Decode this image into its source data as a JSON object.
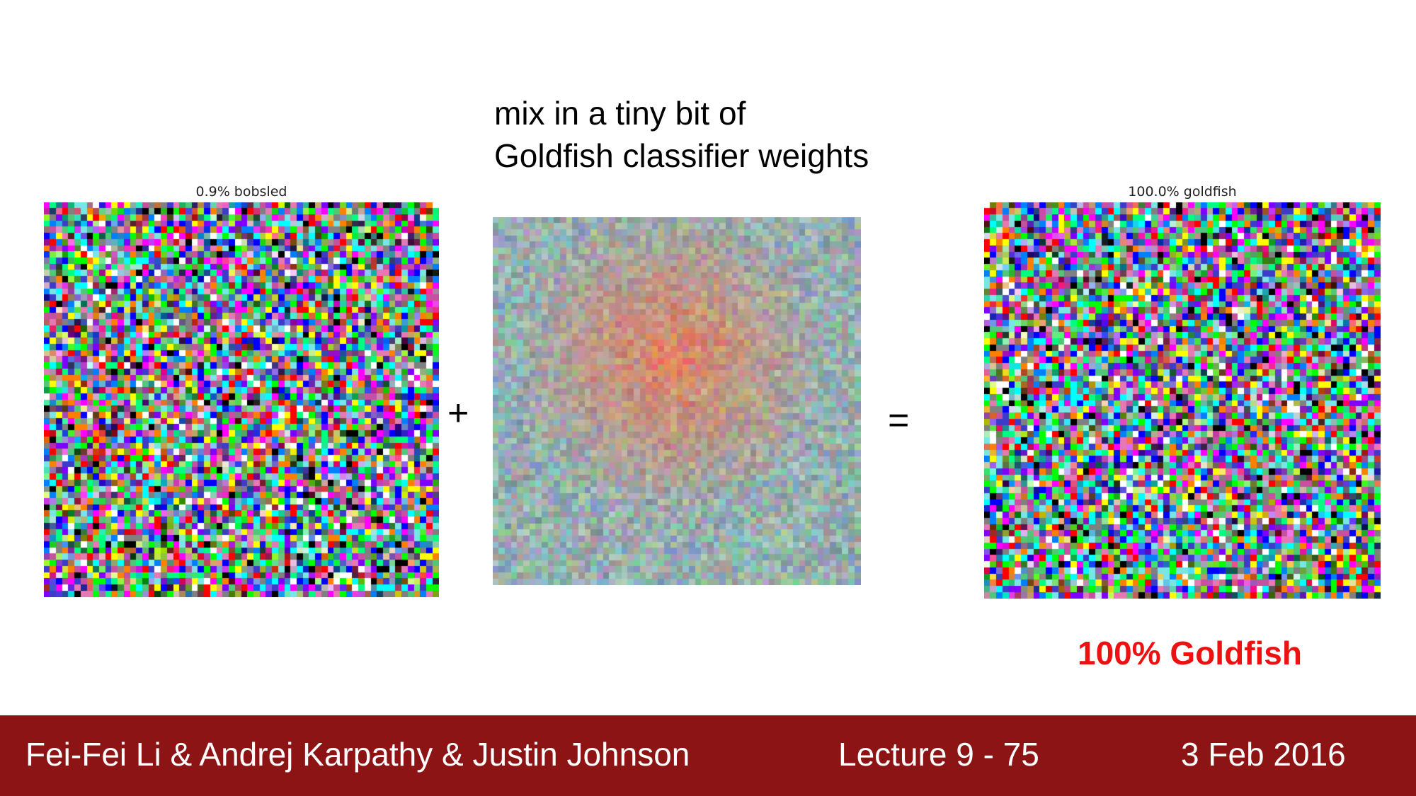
{
  "slide": {
    "title_line1": "mix in a tiny bit of",
    "title_line2": "Goldfish classifier weights"
  },
  "panels": {
    "left_caption": "0.9% bobsled",
    "right_caption": "100.0% goldfish"
  },
  "operators": {
    "plus": "+",
    "equals": "="
  },
  "result_label": "100% Goldfish",
  "colors": {
    "result_label": "#ee1111",
    "footer_bg": "#8c1414",
    "footer_text": "#ffffff"
  },
  "footer": {
    "authors": "Fei-Fei Li & Andrej Karpathy & Justin Johnson",
    "lecture": "Lecture 9 - 75",
    "date": "3 Feb 2016"
  }
}
